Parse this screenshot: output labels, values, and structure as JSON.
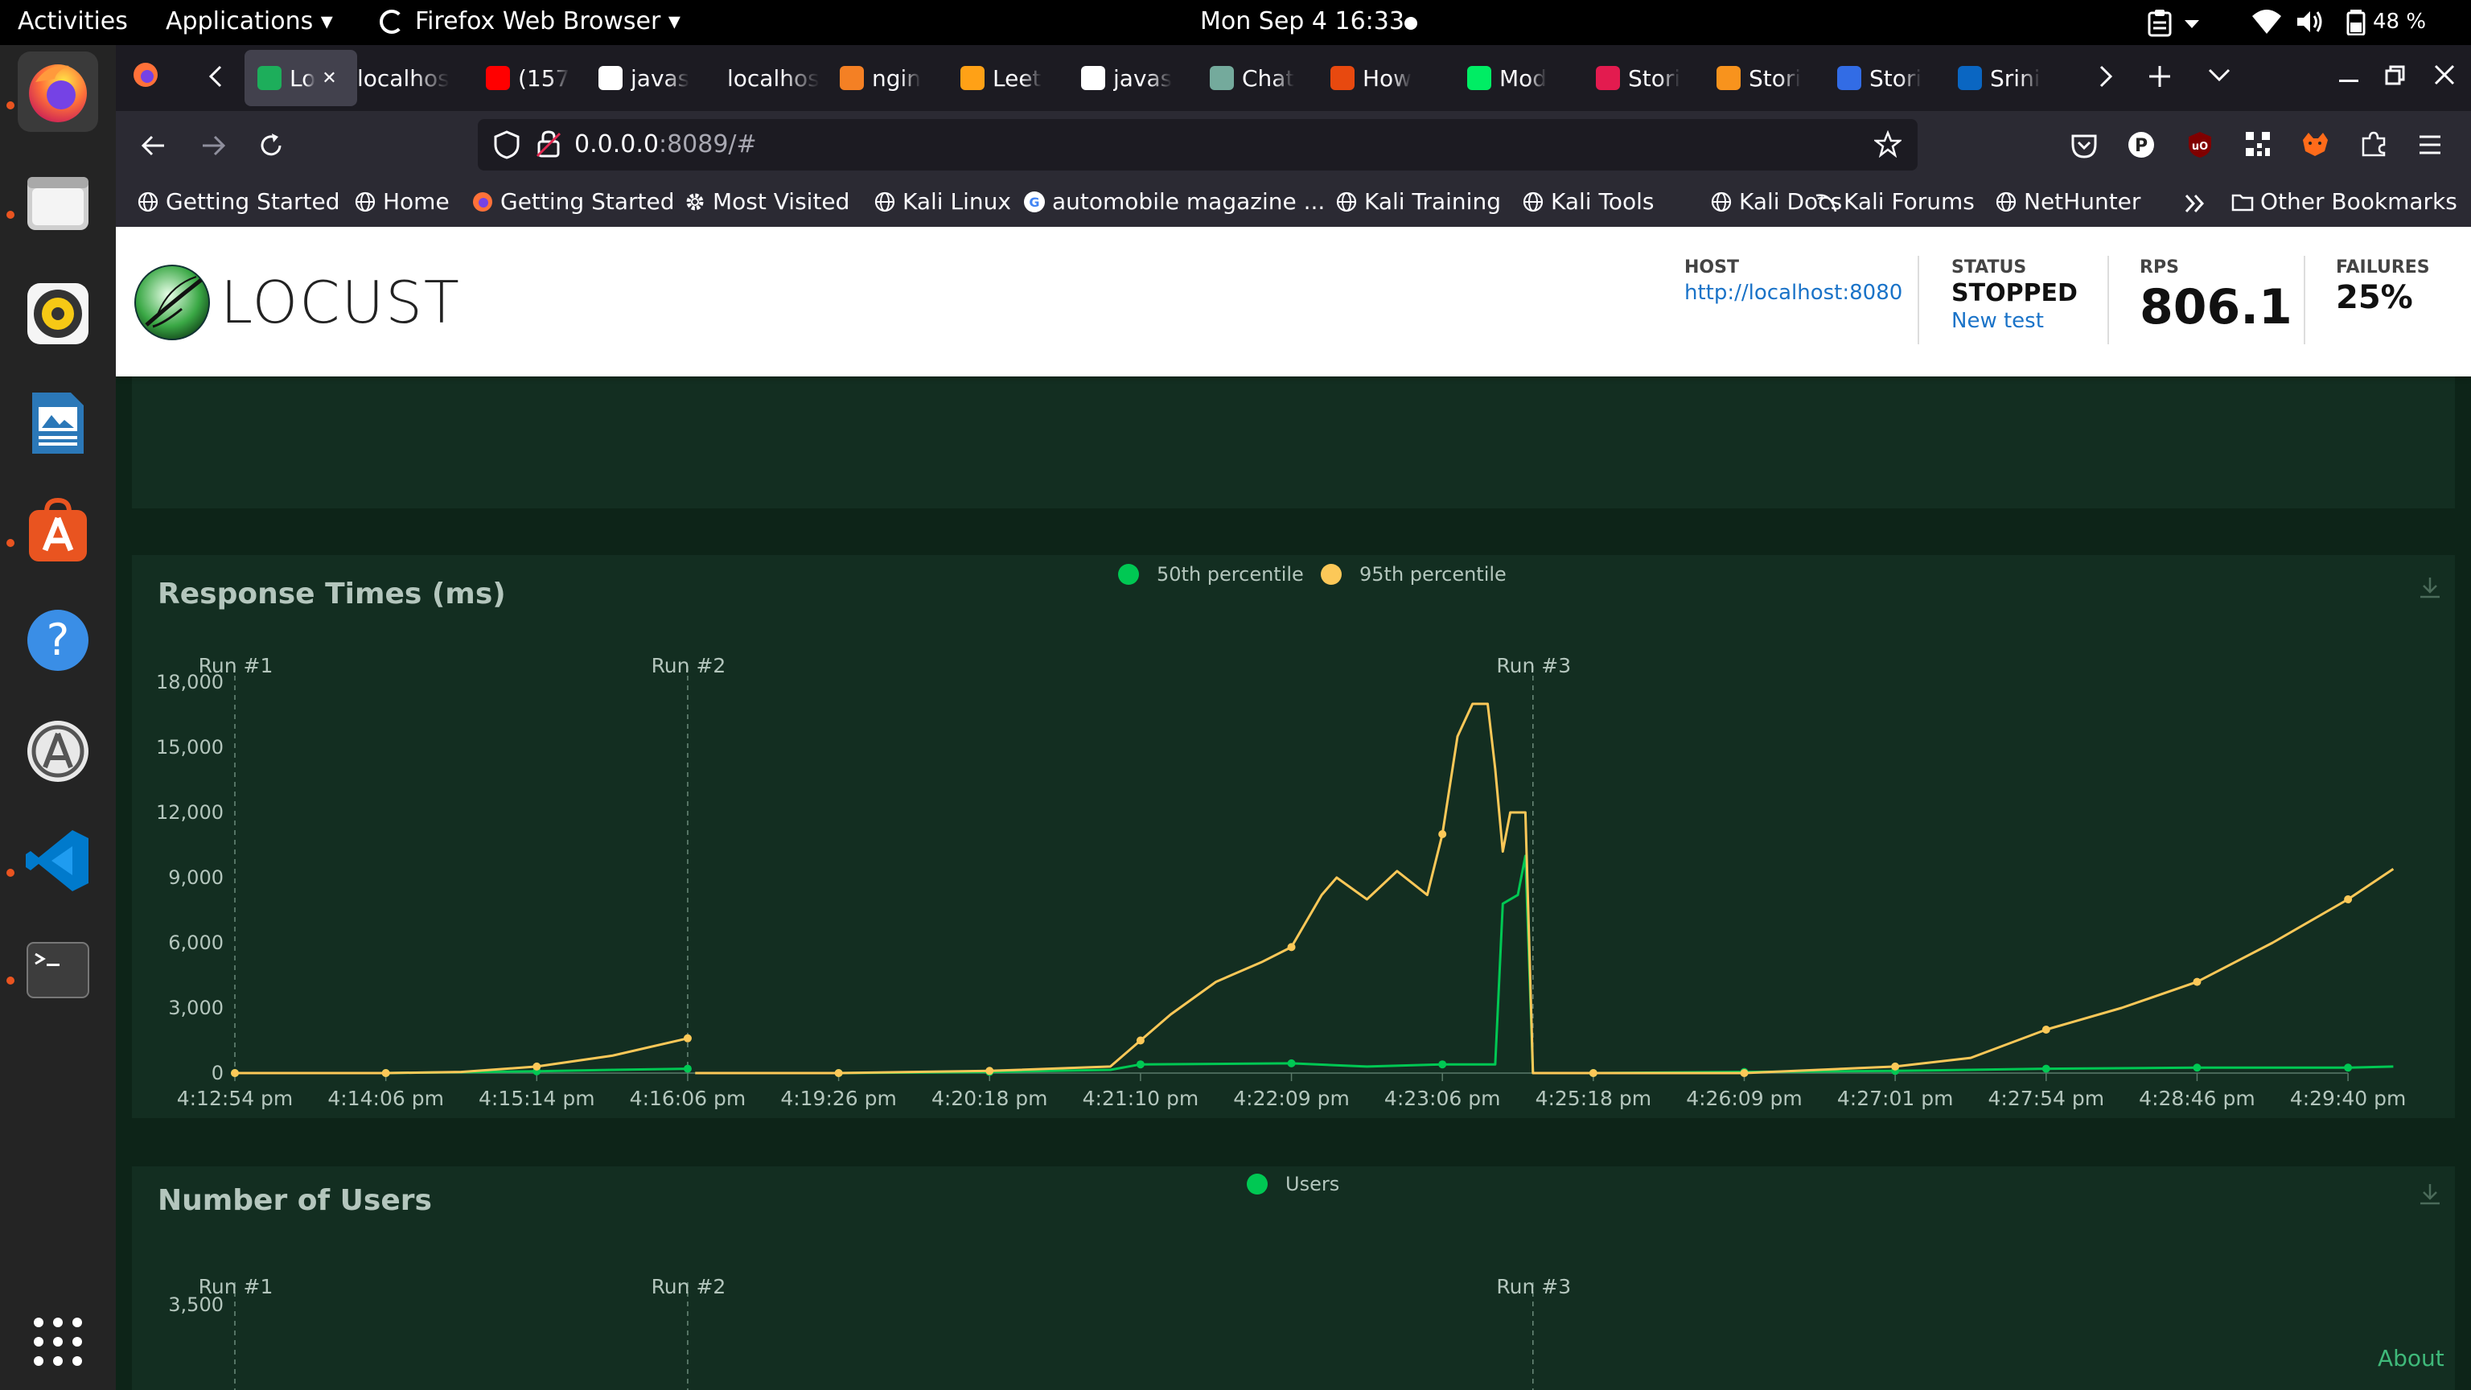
{
  "topbar": {
    "activities": "Activities",
    "applications": "Applications ▾",
    "firefox": "Firefox Web Browser ▾",
    "clock": "Mon Sep 4  16:33",
    "battery": "48 %"
  },
  "browser": {
    "tabs": [
      {
        "label": "Lo",
        "active": true,
        "color": "#1dae5b"
      },
      {
        "label": "localhos",
        "color": ""
      },
      {
        "label": "(157",
        "color": "#ff0000"
      },
      {
        "label": "javas",
        "color": "#ffffff"
      },
      {
        "label": "localhos",
        "color": ""
      },
      {
        "label": "ngin",
        "color": "#f48024"
      },
      {
        "label": "Leet",
        "color": "#ffa116"
      },
      {
        "label": "javas",
        "color": "#ffffff"
      },
      {
        "label": "Chat",
        "color": "#74aa9c"
      },
      {
        "label": "How",
        "color": "#e8490f"
      },
      {
        "label": "Mod",
        "color": "#00ed64"
      },
      {
        "label": "Stori",
        "color": "#e31b4f"
      },
      {
        "label": "Stori",
        "color": "#f8931d"
      },
      {
        "label": "Stori",
        "color": "#326ce5"
      },
      {
        "label": "Srini",
        "color": "#0a66c2"
      }
    ],
    "url_host": "0.0.0.0",
    "url_rest": ":8089/#",
    "bookmarks": [
      "Getting Started",
      "Home",
      "Getting Started",
      "Most Visited",
      "Kali Linux",
      "automobile magazine ...",
      "Kali Training",
      "Kali Tools",
      "Kali Docs",
      "Kali Forums",
      "NetHunter"
    ],
    "other_bookmarks": "Other Bookmarks"
  },
  "locust": {
    "logo_text": "LOCUST",
    "host_label": "HOST",
    "host_value": "http://localhost:8080",
    "status_label": "STATUS",
    "status_value": "STOPPED",
    "new_test": "New test",
    "rps_label": "RPS",
    "rps_value": "806.1",
    "failures_label": "FAILURES",
    "failures_value": "25%",
    "about": "About"
  },
  "chart_data": [
    {
      "type": "line",
      "title": "",
      "ylim_visible_tick": 0,
      "x": [
        "4:12:54 pm",
        "4:14:06 pm",
        "4:15:14 pm",
        "4:16:06 pm",
        "4:19:26 pm",
        "4:20:18 pm",
        "4:21:10 pm",
        "4:22:09 pm",
        "4:23:06 pm",
        "4:25:18 pm",
        "4:26:09 pm",
        "4:27:01 pm",
        "4:27:54 pm",
        "4:28:46 pm",
        "4:29:40 pm"
      ],
      "series_colors": [
        "#00c853",
        "#ff6666"
      ],
      "tick_zero": "0"
    },
    {
      "type": "line",
      "title": "Response Times (ms)",
      "x": [
        "4:12:54 pm",
        "4:14:06 pm",
        "4:15:14 pm",
        "4:16:06 pm",
        "4:19:26 pm",
        "4:20:18 pm",
        "4:21:10 pm",
        "4:22:09 pm",
        "4:23:06 pm",
        "4:25:18 pm",
        "4:26:09 pm",
        "4:27:01 pm",
        "4:27:54 pm",
        "4:28:46 pm",
        "4:29:40 pm"
      ],
      "y_ticks": [
        "0",
        "3,000",
        "6,000",
        "9,000",
        "12,000",
        "15,000",
        "18,000"
      ],
      "ylim": [
        0,
        18000
      ],
      "markers": [
        {
          "label": "Run #1",
          "at": 0
        },
        {
          "label": "Run #2",
          "at": 3
        },
        {
          "label": "Run #3",
          "at": 8.6
        }
      ],
      "legend_position": "top-center",
      "series": [
        {
          "name": "50th percentile",
          "color": "#00c853",
          "x": [
            0,
            1,
            2,
            2.5,
            3,
            3.05,
            4,
            5,
            5.8,
            6,
            7,
            7.5,
            8,
            8.35,
            8.4,
            8.5,
            8.55,
            8.6,
            9,
            10,
            11,
            12,
            13,
            14,
            14.3
          ],
          "values": [
            0,
            0,
            80,
            150,
            200,
            0,
            0,
            50,
            150,
            400,
            450,
            300,
            400,
            400,
            7800,
            8200,
            10000,
            0,
            0,
            50,
            100,
            200,
            250,
            250,
            300
          ]
        },
        {
          "name": "95th percentile",
          "color": "#fcc858",
          "x": [
            0,
            1,
            1.5,
            2,
            2.5,
            3,
            3.05,
            4,
            5,
            5.8,
            6,
            6.2,
            6.5,
            6.8,
            7,
            7.2,
            7.3,
            7.5,
            7.7,
            7.9,
            8,
            8.1,
            8.2,
            8.3,
            8.35,
            8.4,
            8.45,
            8.5,
            8.55,
            8.6,
            9,
            10,
            11,
            11.5,
            12,
            12.5,
            13,
            13.5,
            14,
            14.3
          ],
          "values": [
            0,
            0,
            50,
            300,
            800,
            1600,
            0,
            0,
            100,
            300,
            1500,
            2700,
            4200,
            5100,
            5800,
            8200,
            9000,
            8000,
            9300,
            8200,
            11000,
            15500,
            17000,
            17000,
            14000,
            10200,
            12000,
            12000,
            12000,
            0,
            0,
            0,
            300,
            700,
            2000,
            3000,
            4200,
            6000,
            8000,
            9400
          ]
        }
      ]
    },
    {
      "type": "line",
      "title": "Number of Users",
      "y_ticks": [
        "3,500"
      ],
      "markers": [
        {
          "label": "Run #1",
          "at": 0
        },
        {
          "label": "Run #2",
          "at": 3
        },
        {
          "label": "Run #3",
          "at": 8.6
        }
      ],
      "series": [
        {
          "name": "Users",
          "color": "#00c853"
        }
      ]
    }
  ]
}
